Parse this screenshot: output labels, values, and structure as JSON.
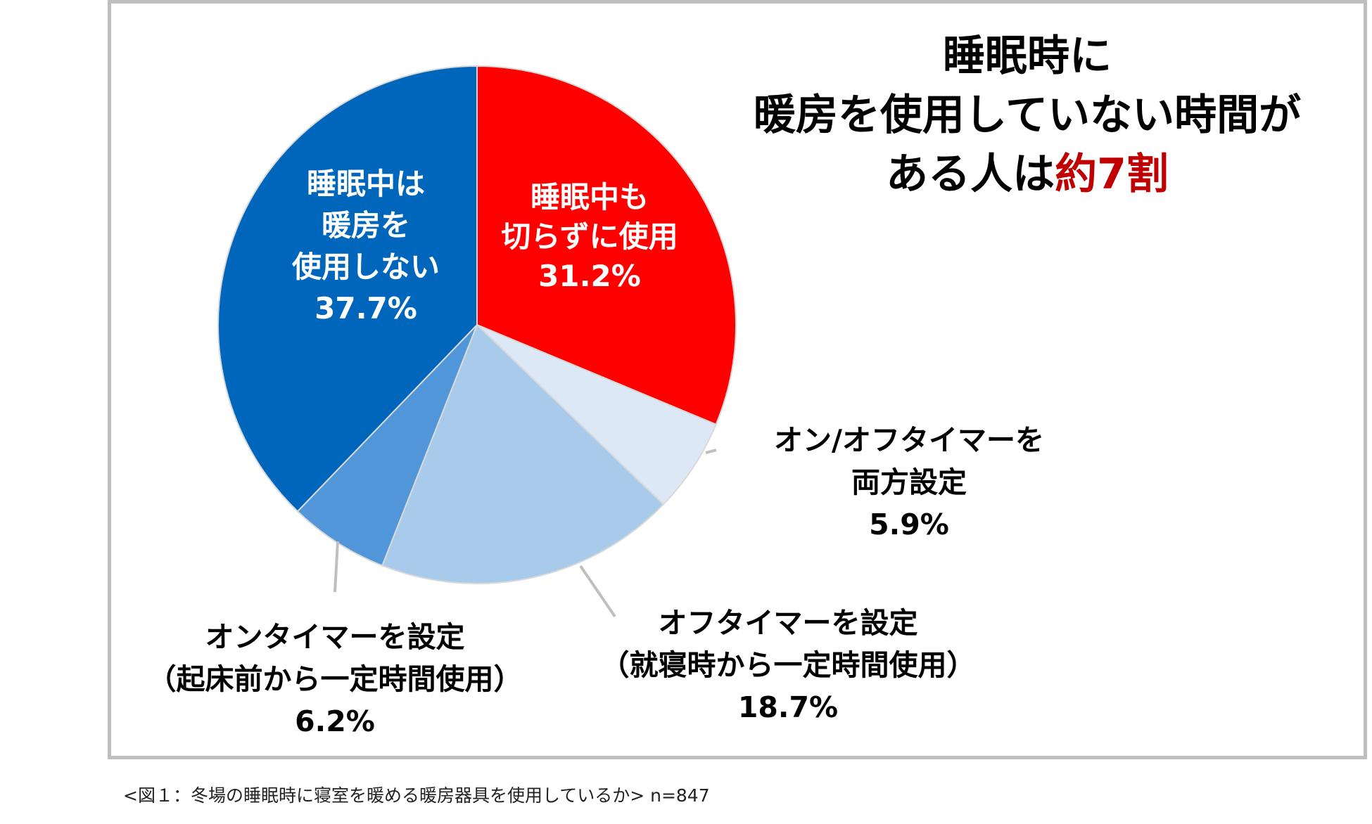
{
  "headline": {
    "line1": "睡眠時に",
    "line2": "暖房を使用していない時間が",
    "line3_prefix": "ある人は",
    "line3_highlight": "約7割"
  },
  "caption": "<図１：冬場の睡眠時に寝室を暖める暖房器具を使用しているか>  n=847",
  "colors": {
    "accent_text": "#c00000",
    "slice_red": "#ff0000",
    "slice_light": "#dde8f6",
    "slice_pale_blue": "#a9cbeb",
    "slice_mid_blue": "#5096d8",
    "slice_dark_blue": "#0066bb",
    "frame": "#bfbfbf",
    "leader": "#bfbfbf"
  },
  "chart_data": {
    "type": "pie",
    "title": "",
    "start": "12 o'clock, clockwise",
    "slices": [
      {
        "label_lines": [
          "睡眠中も",
          "切らずに使用"
        ],
        "value_text": "31.2%",
        "value": 31.2,
        "color": "#ff0000",
        "label_color": "#ffffff"
      },
      {
        "label_lines": [
          "オン/オフタイマーを",
          "両方設定"
        ],
        "value_text": "5.9%",
        "value": 5.9,
        "color": "#dde8f6",
        "label_color": "#000000"
      },
      {
        "label_lines": [
          "オフタイマーを設定",
          "（就寝時から一定時間使用）"
        ],
        "value_text": "18.7%",
        "value": 18.7,
        "color": "#a9cbeb",
        "label_color": "#000000"
      },
      {
        "label_lines": [
          "オンタイマーを設定",
          "（起床前から一定時間使用）"
        ],
        "value_text": "6.2%",
        "value": 6.2,
        "color": "#5096d8",
        "label_color": "#000000"
      },
      {
        "label_lines": [
          "睡眠中は",
          "暖房を",
          "使用しない"
        ],
        "value_text": "37.7%",
        "value": 37.7,
        "color": "#0066bb",
        "label_color": "#ffffff"
      }
    ]
  }
}
